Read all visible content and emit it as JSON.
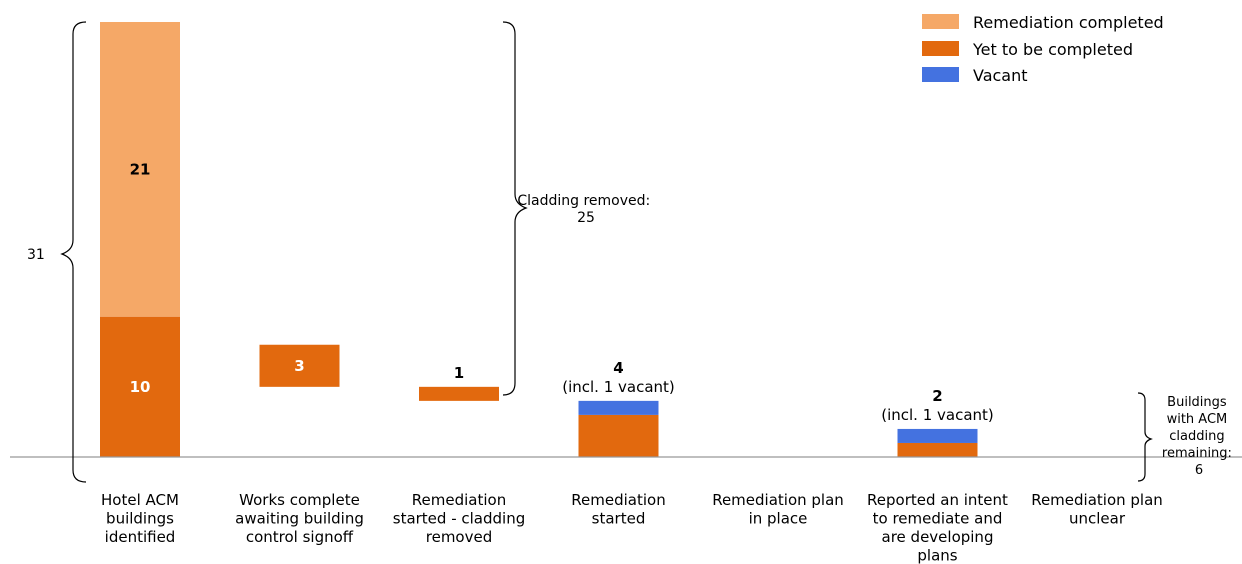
{
  "chart_data": {
    "type": "bar",
    "subtype": "waterfall",
    "categories": [
      [
        "Hotel ACM",
        "buildings",
        "identified"
      ],
      [
        "Works complete",
        "awaiting building",
        "control signoff"
      ],
      [
        "Remediation",
        "started - cladding",
        "removed"
      ],
      [
        "Remediation",
        "started"
      ],
      [
        "Remediation plan",
        "in place"
      ],
      [
        "Reported an intent",
        "to remediate and",
        "are developing",
        "plans"
      ],
      [
        "Remediation plan",
        "unclear"
      ]
    ],
    "series": [
      {
        "name": "Remediation completed",
        "color": "#F5A867",
        "values": [
          21,
          0,
          0,
          0,
          0,
          0,
          0
        ]
      },
      {
        "name": "Yet to be completed",
        "color": "#E2690E",
        "values": [
          10,
          3,
          1,
          3,
          0,
          1,
          0
        ]
      },
      {
        "name": "Vacant",
        "color": "#4472E0",
        "values": [
          0,
          0,
          0,
          1,
          0,
          1,
          0
        ]
      }
    ],
    "bases": [
      0,
      5,
      4,
      0,
      0,
      0,
      0
    ],
    "bar_labels": [
      {
        "index": 0,
        "segment": "completed",
        "text": "21",
        "position": "inside",
        "color": "#000000"
      },
      {
        "index": 0,
        "segment": "yet",
        "text": "10",
        "position": "inside",
        "color": "#ffffff"
      },
      {
        "index": 1,
        "segment": "yet",
        "text": "3",
        "position": "inside",
        "color": "#ffffff"
      },
      {
        "index": 2,
        "text": "1",
        "position": "above"
      },
      {
        "index": 3,
        "text": "4",
        "sub": "(incl. 1 vacant)",
        "position": "above"
      },
      {
        "index": 5,
        "text": "2",
        "sub": "(incl. 1 vacant)",
        "position": "above"
      }
    ],
    "annotations": {
      "total": "31",
      "cladding_removed": [
        "Cladding removed:",
        "25"
      ],
      "remaining": [
        "Buildings",
        "with ACM",
        "cladding",
        "remaining:",
        "6"
      ]
    },
    "ylim": [
      0,
      31
    ],
    "title": "",
    "xlabel": "",
    "ylabel": "",
    "grid": false,
    "legend_position": "top-right"
  }
}
